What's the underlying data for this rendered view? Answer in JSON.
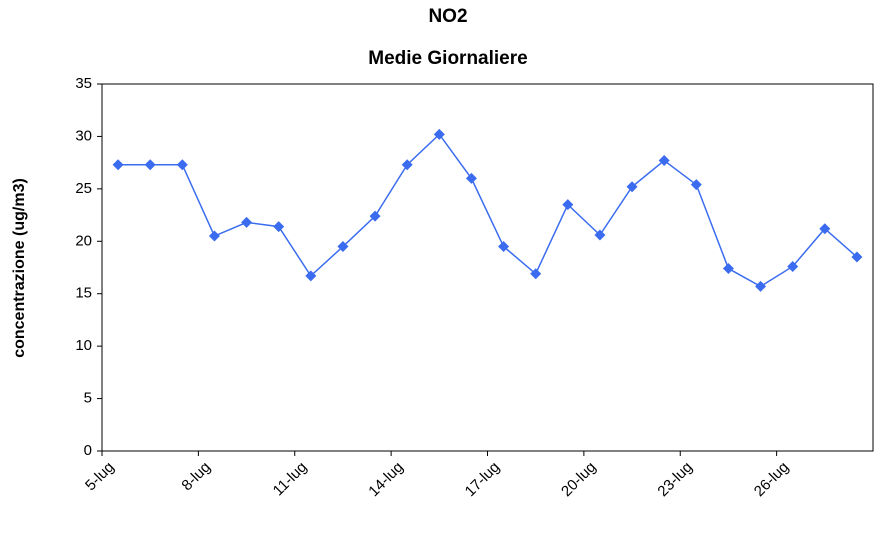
{
  "chart_data": {
    "type": "line",
    "title": "NO2",
    "subtitle": "Medie Giornaliere",
    "y_label": "concentrazione (ug/m3)",
    "categories": [
      "5-lug",
      null,
      null,
      "8-lug",
      null,
      null,
      "11-lug",
      null,
      null,
      "14-lug",
      null,
      null,
      "17-lug",
      null,
      null,
      "20-lug",
      null,
      null,
      "23-lug",
      null,
      null,
      "26-lug",
      null,
      null
    ],
    "values": [
      27.3,
      27.3,
      27.3,
      20.5,
      21.8,
      21.4,
      16.7,
      19.5,
      22.4,
      27.3,
      30.2,
      26.0,
      19.5,
      16.9,
      23.5,
      20.6,
      25.2,
      27.7,
      25.4,
      17.4,
      15.7,
      17.6,
      21.2,
      18.5
    ],
    "color": "#3b6cf0",
    "ylim": [
      0,
      35
    ],
    "yticks": [
      0,
      5,
      10,
      15,
      20,
      25,
      30,
      35
    ],
    "grid": false
  }
}
